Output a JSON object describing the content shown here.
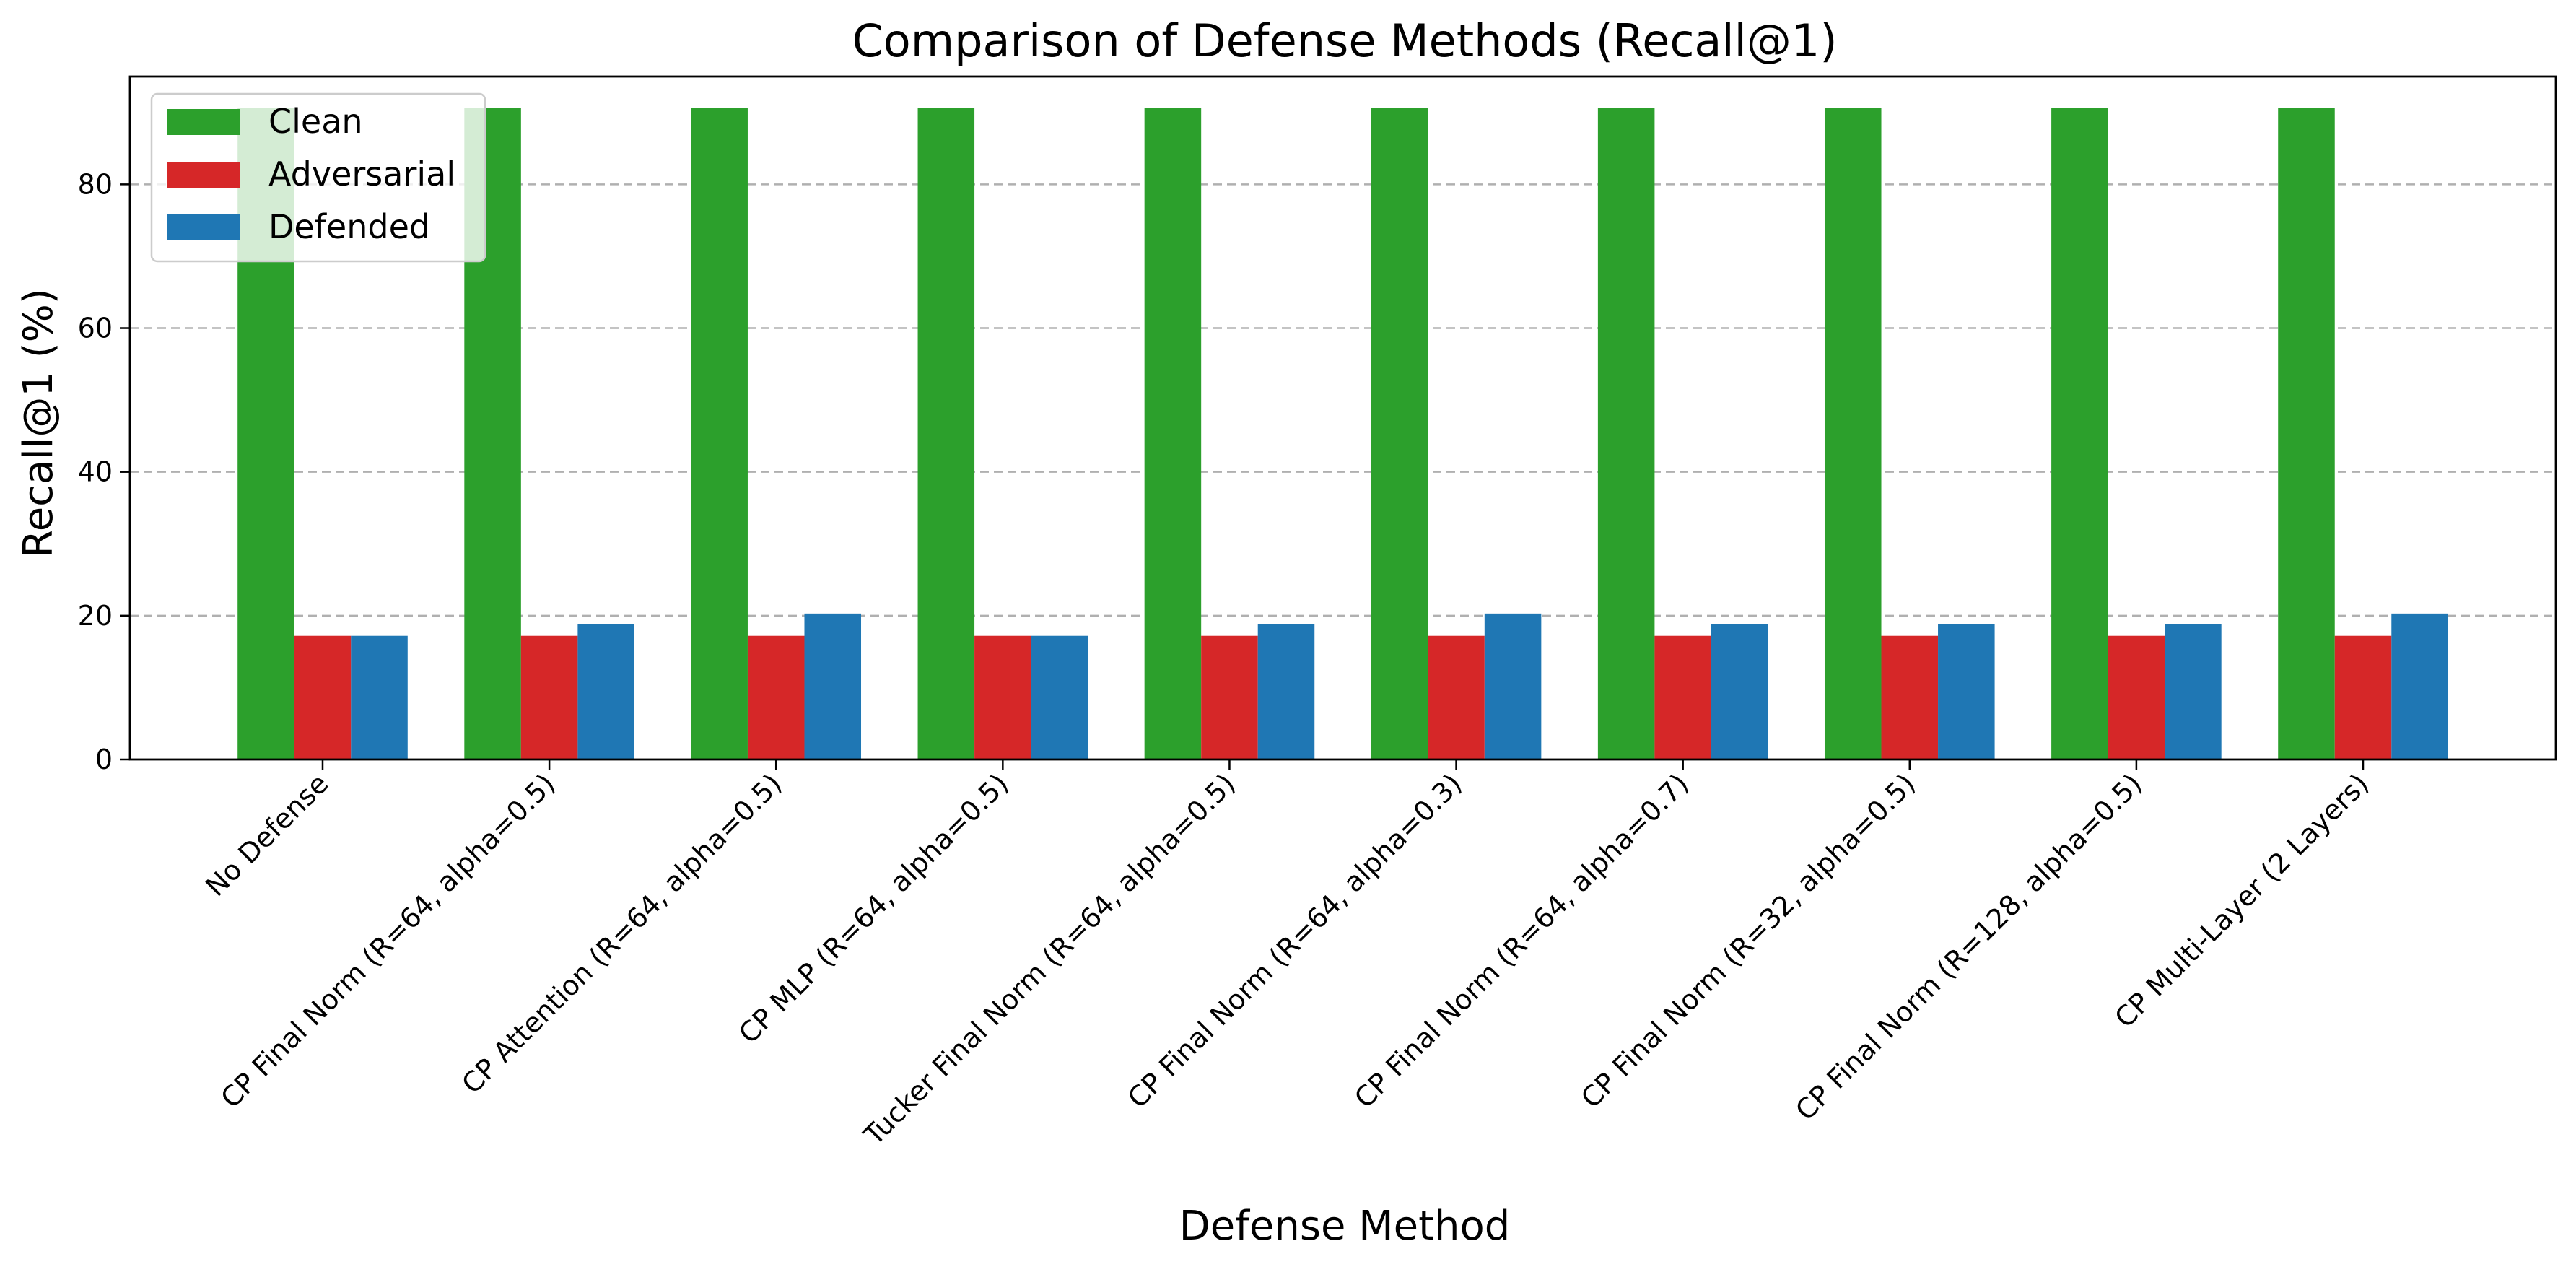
{
  "chart_data": {
    "type": "bar",
    "title": "Comparison of Defense Methods (Recall@1)",
    "xlabel": "Defense Method",
    "ylabel": "Recall@1 (%)",
    "ylim": [
      0,
      95
    ],
    "yticks": [
      0,
      20,
      40,
      60,
      80
    ],
    "grid": "y-dashed",
    "legend_position": "top-left",
    "categories": [
      "No Defense",
      "CP Final Norm (R=64, alpha=0.5)",
      "CP Attention (R=64, alpha=0.5)",
      "CP MLP (R=64, alpha=0.5)",
      "Tucker Final Norm (R=64, alpha=0.5)",
      "CP Final Norm (R=64, alpha=0.3)",
      "CP Final Norm (R=64, alpha=0.7)",
      "CP Final Norm (R=32, alpha=0.5)",
      "CP Final Norm (R=128, alpha=0.5)",
      "CP Multi-Layer (2 Layers)"
    ],
    "series": [
      {
        "name": "Clean",
        "color": "#2ca02c",
        "values": [
          90.6,
          90.6,
          90.6,
          90.6,
          90.6,
          90.6,
          90.6,
          90.6,
          90.6,
          90.6
        ]
      },
      {
        "name": "Adversarial",
        "color": "#d62728",
        "values": [
          17.2,
          17.2,
          17.2,
          17.2,
          17.2,
          17.2,
          17.2,
          17.2,
          17.2,
          17.2
        ]
      },
      {
        "name": "Defended",
        "color": "#1f77b4",
        "values": [
          17.2,
          18.8,
          20.3,
          17.2,
          18.8,
          20.3,
          18.8,
          18.8,
          18.8,
          20.3
        ]
      }
    ]
  }
}
